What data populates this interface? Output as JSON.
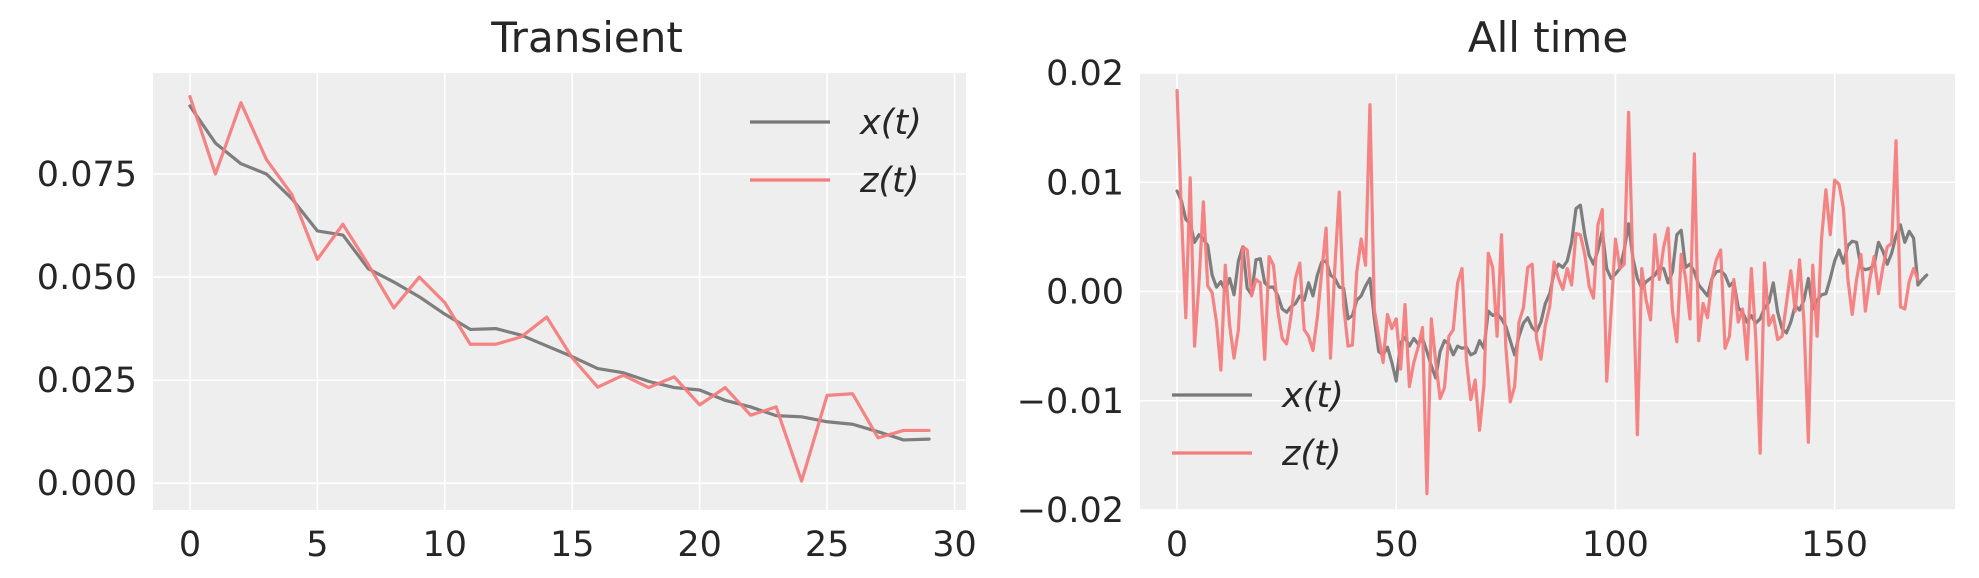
{
  "colors": {
    "background": "#ffffff",
    "panel": "#eeeeee",
    "grid": "#ffffff",
    "text": "#262626",
    "x_series": "#777777",
    "z_series": "#f47c7c"
  },
  "chart_data": [
    {
      "type": "line",
      "title": "Transient",
      "xlabel": "",
      "ylabel": "",
      "xlim": [
        -1.45,
        30.45
      ],
      "ylim": [
        -0.0065,
        0.0995
      ],
      "xticks": [
        0,
        5,
        10,
        15,
        20,
        25,
        30
      ],
      "xtick_labels": [
        "0",
        "5",
        "10",
        "15",
        "20",
        "25",
        "30"
      ],
      "yticks": [
        0.0,
        0.025,
        0.05,
        0.075
      ],
      "ytick_labels": [
        "0.000",
        "0.025",
        "0.050",
        "0.075"
      ],
      "grid": true,
      "legend": {
        "position": "top-right",
        "entries": [
          "x(t)",
          "z(t)"
        ]
      },
      "x": [
        0,
        1,
        2,
        3,
        4,
        5,
        6,
        7,
        8,
        9,
        10,
        11,
        12,
        13,
        14,
        15,
        16,
        17,
        18,
        19,
        20,
        21,
        22,
        23,
        24,
        25,
        26,
        27,
        28,
        29
      ],
      "series": [
        {
          "name": "x(t)",
          "color": "#777777",
          "values": [
            0.0915,
            0.0825,
            0.0775,
            0.075,
            0.069,
            0.0612,
            0.0602,
            0.052,
            0.0488,
            0.0452,
            0.041,
            0.0373,
            0.0375,
            0.0359,
            0.0333,
            0.0307,
            0.0278,
            0.0268,
            0.0247,
            0.0232,
            0.0226,
            0.0201,
            0.0185,
            0.0164,
            0.0161,
            0.0149,
            0.0143,
            0.0125,
            0.0105,
            0.0107
          ]
        },
        {
          "name": "z(t)",
          "color": "#f47c7c",
          "values": [
            0.0938,
            0.075,
            0.0923,
            0.0785,
            0.07,
            0.0543,
            0.0628,
            0.053,
            0.0425,
            0.05,
            0.0438,
            0.0337,
            0.0337,
            0.0355,
            0.0403,
            0.0304,
            0.0233,
            0.0262,
            0.0232,
            0.0258,
            0.019,
            0.0232,
            0.0165,
            0.0185,
            0.0005,
            0.0213,
            0.0217,
            0.011,
            0.0128,
            0.0128
          ]
        }
      ]
    },
    {
      "type": "line",
      "title": "All time",
      "xlabel": "",
      "ylabel": "",
      "xlim": [
        -8.45,
        177.45
      ],
      "ylim": [
        -0.02,
        0.02
      ],
      "xticks": [
        0,
        50,
        100,
        150
      ],
      "xtick_labels": [
        "0",
        "50",
        "100",
        "150"
      ],
      "yticks": [
        -0.02,
        -0.01,
        0.0,
        0.01,
        0.02
      ],
      "ytick_labels": [
        "−0.02",
        "−0.01",
        "0.00",
        "0.01",
        "0.02"
      ],
      "grid": true,
      "legend": {
        "position": "bottom-left",
        "entries": [
          "x(t)",
          "z(t)"
        ]
      },
      "x_step": 1,
      "series": [
        {
          "name": "x(t)",
          "color": "#777777",
          "values": [
            0.0092,
            0.0083,
            0.0066,
            0.0062,
            0.0045,
            0.0052,
            0.0048,
            0.0042,
            0.0015,
            0.0004,
            0.0009,
            0.0001,
            0.0012,
            -0.0003,
            0.0028,
            0.0041,
            0.0003,
            -0.0003,
            0.0029,
            0.003,
            0.0008,
            0.0004,
            0.0004,
            -0.0004,
            -0.0016,
            -0.0019,
            -0.0014,
            -0.0011,
            -0.0004,
            -0.0008,
            0.0008,
            -0.0004,
            0.0015,
            0.0027,
            0.0028,
            0.0015,
            0.0012,
            0.0004,
            0.0003,
            -0.0025,
            -0.0022,
            -0.0008,
            -0.0004,
            0.0005,
            0.0012,
            -0.0025,
            -0.0055,
            -0.0058,
            -0.0051,
            -0.0065,
            -0.0082,
            -0.0047,
            -0.0042,
            -0.005,
            -0.0043,
            -0.0048,
            -0.0043,
            -0.0055,
            -0.0068,
            -0.0079,
            -0.0055,
            -0.0045,
            -0.0048,
            -0.0058,
            -0.005,
            -0.0052,
            -0.0051,
            -0.0058,
            -0.0056,
            -0.0045,
            -0.0052,
            -0.0018,
            -0.0022,
            -0.002,
            -0.0025,
            -0.0032,
            -0.0045,
            -0.0058,
            -0.0041,
            -0.0029,
            -0.0024,
            -0.0033,
            -0.0037,
            -0.0028,
            -0.0011,
            -0.0002,
            0.0017,
            0.0025,
            0.0022,
            0.0028,
            0.0045,
            0.0076,
            0.0079,
            0.0052,
            0.0033,
            0.0025,
            0.0038,
            0.0055,
            0.0021,
            0.0012,
            0.0016,
            0.0021,
            0.0038,
            0.0062,
            0.003,
            0.0012,
            0.0003,
            0.0009,
            0.0012,
            0.0015,
            0.0022,
            0.0021,
            0.0008,
            0.0018,
            0.0052,
            0.0056,
            0.0022,
            0.0025,
            0.0018,
            0.0006,
            0.0001,
            -0.0004,
            0.0012,
            0.0018,
            0.0019,
            0.0015,
            0.0005,
            0.0009,
            -0.0015,
            -0.0019,
            -0.0028,
            -0.0022,
            -0.0029,
            -0.0025,
            -0.0015,
            -0.001,
            0.0008,
            -0.0019,
            -0.0034,
            -0.0038,
            -0.0028,
            -0.0013,
            -0.0017,
            -0.0008,
            0.0012,
            -0.0016,
            -0.0008,
            -0.0003,
            -0.0002,
            0.0012,
            0.0028,
            0.0038,
            0.0026,
            0.0042,
            0.0046,
            0.0045,
            0.0022,
            0.002,
            0.0021,
            0.0024,
            0.0045,
            0.0037,
            0.0025,
            0.0035,
            0.0051,
            0.0061,
            0.0045,
            0.0055,
            0.0049,
            0.0006,
            0.0011,
            0.0015
          ]
        },
        {
          "name": "z(t)",
          "color": "#f47c7c",
          "values": [
            0.0184,
            0.0072,
            -0.0024,
            0.0104,
            -0.005,
            0.0008,
            0.0082,
            0.0005,
            -0.0001,
            -0.0028,
            -0.0072,
            0.0024,
            -0.0031,
            -0.0061,
            -0.0035,
            0.0041,
            0.0038,
            -0.0004,
            0.0011,
            0.0008,
            -0.0062,
            0.0032,
            0.0024,
            -0.0018,
            -0.0043,
            -0.0048,
            -0.0022,
            0.0012,
            0.0026,
            -0.0035,
            -0.0041,
            -0.0054,
            -0.0024,
            0.0018,
            0.0058,
            -0.0061,
            0.0022,
            0.0091,
            -0.0013,
            -0.005,
            -0.0049,
            0.0018,
            0.0048,
            0.0024,
            0.0171,
            -0.0017,
            -0.0041,
            -0.0065,
            -0.0021,
            -0.0034,
            -0.0025,
            -0.0071,
            -0.0012,
            -0.0087,
            -0.0065,
            -0.0051,
            -0.0033,
            -0.0185,
            -0.0025,
            -0.0064,
            -0.0098,
            -0.0088,
            -0.0041,
            -0.0035,
            0.0008,
            0.0021,
            -0.0062,
            -0.0099,
            -0.0081,
            -0.0127,
            -0.0086,
            0.0035,
            0.0022,
            -0.0041,
            0.0052,
            -0.0051,
            -0.0101,
            -0.0087,
            -0.0028,
            -0.0015,
            0.0022,
            0.0025,
            -0.0043,
            -0.0062,
            -0.0031,
            -0.0014,
            0.0027,
            0.0012,
            0.0002,
            0.0021,
            0.0006,
            0.0053,
            0.0052,
            0.0034,
            0.0005,
            -0.0006,
            0.0061,
            0.0075,
            -0.0082,
            -0.0019,
            0.0048,
            0.0021,
            0.0025,
            0.0164,
            0.0018,
            -0.0131,
            0.0021,
            -0.0008,
            -0.0026,
            0.0052,
            0.0011,
            0.0041,
            0.0058,
            -0.0018,
            -0.0046,
            0.0034,
            0.0012,
            -0.0025,
            0.0126,
            -0.0045,
            -0.0011,
            -0.0024,
            0.0011,
            0.0029,
            0.0038,
            -0.0052,
            -0.0041,
            0.0011,
            -0.0028,
            -0.0016,
            -0.0062,
            0.0021,
            -0.0042,
            -0.0148,
            0.0026,
            -0.0031,
            -0.0022,
            -0.0044,
            -0.0041,
            -0.0011,
            0.0019,
            -0.0018,
            0.0029,
            -0.0028,
            -0.0138,
            0.0024,
            -0.0041,
            0.0048,
            0.0093,
            0.0052,
            0.0102,
            0.0098,
            0.0076,
            0.0012,
            -0.0021,
            0.0011,
            0.0034,
            -0.0018,
            0.0011,
            0.0032,
            -0.0002,
            0.0022,
            0.0041,
            0.0044,
            0.0138,
            -0.0014,
            -0.0016,
            0.0009,
            0.0021,
            0.0011
          ]
        }
      ]
    }
  ]
}
